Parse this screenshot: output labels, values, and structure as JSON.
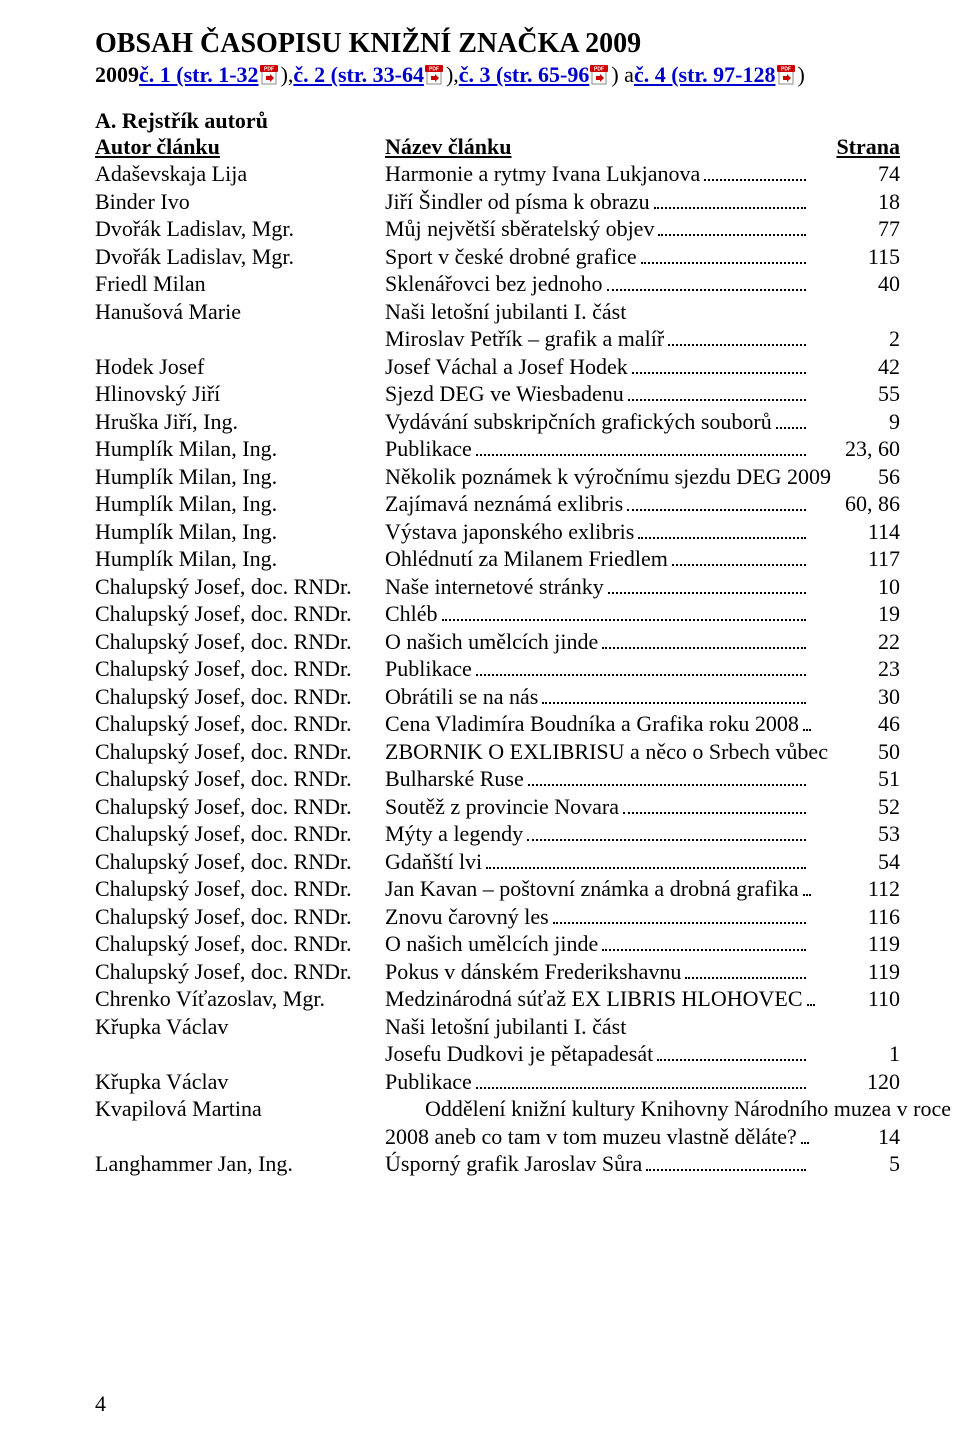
{
  "colors": {
    "background": "#ffffff",
    "text": "#000000",
    "link": "#0000cc"
  },
  "title": "OBSAH ČASOPISU KNIŽNÍ ZNAČKA 2009",
  "links_line": {
    "prefix_bold": "2009",
    "segments": [
      {
        "pre": " ",
        "link": "č. 1 (str. 1-32",
        "post": "), "
      },
      {
        "pre": "",
        "link": "č. 2 (str. 33-64",
        "post": "), "
      },
      {
        "pre": "",
        "link": "č. 3 (str. 65-96",
        "post": ") a "
      },
      {
        "pre": "",
        "link": "č. 4 (str. 97-128",
        "post": ")"
      }
    ]
  },
  "section_a": {
    "heading": "A. Rejstřík autorů",
    "col_author": "Autor článku",
    "col_title": "Název článku",
    "col_page": "Strana"
  },
  "entries": [
    {
      "author": "Adaševskaja Lija",
      "title": "Harmonie a rytmy Ivana Lukjanova",
      "page": "74"
    },
    {
      "author": "Binder Ivo",
      "title": "Jiří Šindler od písma k obrazu",
      "page": "18"
    },
    {
      "author": "Dvořák Ladislav, Mgr.",
      "title": "Můj největší sběratelský objev",
      "page": "77"
    },
    {
      "author": "Dvořák Ladislav, Mgr.",
      "title": "Sport v české drobné grafice",
      "page": "115"
    },
    {
      "author": "Friedl Milan",
      "title": "Sklenářovci bez jednoho",
      "page": "40"
    },
    {
      "author": "Hanušová Marie",
      "title": "Naši letošní jubilanti I. část",
      "page": "",
      "noline": true
    },
    {
      "author": "",
      "title": "Miroslav Petřík – grafik a malíř",
      "page": "2"
    },
    {
      "author": "Hodek Josef",
      "title": "Josef Váchal a Josef Hodek",
      "page": "42"
    },
    {
      "author": "Hlinovský Jiří",
      "title": "Sjezd DEG ve Wiesbadenu",
      "page": "55"
    },
    {
      "author": "Hruška Jiří, Ing.",
      "title": "Vydávání subskripčních grafických souborů",
      "page": "9"
    },
    {
      "author": "Humplík Milan, Ing.",
      "title": "Publikace",
      "page": "23, 60"
    },
    {
      "author": "Humplík Milan, Ing.",
      "title": "Několik poznámek k výročnímu sjezdu DEG 2009",
      "page": "56",
      "noline": true
    },
    {
      "author": "Humplík Milan, Ing.",
      "title": "Zajímavá neznámá exlibris",
      "page": "60, 86"
    },
    {
      "author": "Humplík Milan, Ing.",
      "title": "Výstava japonského exlibris",
      "page": "114"
    },
    {
      "author": "Humplík Milan, Ing.",
      "title": "Ohlédnutí za Milanem Friedlem",
      "page": "117"
    },
    {
      "author": "Chalupský Josef, doc. RNDr.",
      "title": "Naše internetové stránky",
      "page": "10"
    },
    {
      "author": "Chalupský Josef, doc. RNDr.",
      "title": "Chléb",
      "page": "19"
    },
    {
      "author": "Chalupský Josef, doc. RNDr.",
      "title": "O našich umělcích jinde",
      "page": "22"
    },
    {
      "author": "Chalupský Josef, doc. RNDr.",
      "title": "Publikace",
      "page": "23"
    },
    {
      "author": "Chalupský Josef, doc. RNDr.",
      "title": "Obrátili se na nás",
      "page": "30"
    },
    {
      "author": "Chalupský Josef, doc. RNDr.",
      "title": "Cena Vladimíra Boudníka a Grafika roku 2008",
      "page": "46"
    },
    {
      "author": "Chalupský Josef, doc. RNDr.",
      "title": "ZBORNIK O EXLIBRISU a něco o Srbech vůbec",
      "page": "50",
      "noline": true
    },
    {
      "author": "Chalupský Josef, doc. RNDr.",
      "title": "Bulharské Ruse",
      "page": "51"
    },
    {
      "author": "Chalupský Josef, doc. RNDr.",
      "title": "Soutěž z provincie Novara",
      "page": "52"
    },
    {
      "author": "Chalupský Josef, doc. RNDr.",
      "title": "Mýty a legendy",
      "page": "53"
    },
    {
      "author": "Chalupský Josef, doc. RNDr.",
      "title": "Gdaňští lvi",
      "page": "54"
    },
    {
      "author": "Chalupský Josef, doc. RNDr.",
      "title": "Jan Kavan – poštovní známka a drobná grafika",
      "page": "112"
    },
    {
      "author": "Chalupský Josef, doc. RNDr.",
      "title": "Znovu čarovný les",
      "page": "116"
    },
    {
      "author": "Chalupský Josef, doc. RNDr.",
      "title": "O našich umělcích jinde",
      "page": "119"
    },
    {
      "author": "Chalupský Josef, doc. RNDr.",
      "title": "Pokus v dánském Frederikshavnu",
      "page": "119"
    },
    {
      "author": "Chrenko Víťazoslav, Mgr.",
      "title": "Medzinárodná súťaž EX LIBRIS HLOHOVEC",
      "page": "110"
    },
    {
      "author": "Křupka Václav",
      "title": "Naši letošní jubilanti I. část",
      "page": "",
      "noline": true
    },
    {
      "author": "",
      "title": "Josefu Dudkovi je pětapadesát",
      "page": "1"
    },
    {
      "author": "Křupka Václav",
      "title": "Publikace",
      "page": "120"
    },
    {
      "author": "Kvapilová Martina",
      "title": "Oddělení knižní kultury Knihovny Národního muzea v roce",
      "page": "",
      "noline": true,
      "indent": true
    },
    {
      "author": "",
      "title": "2008 aneb co tam v tom muzeu vlastně děláte?",
      "page": "14"
    },
    {
      "author": "Langhammer Jan, Ing.",
      "title": "Úsporný grafik Jaroslav Sůra",
      "page": "5"
    }
  ],
  "footer_page_number": "4"
}
